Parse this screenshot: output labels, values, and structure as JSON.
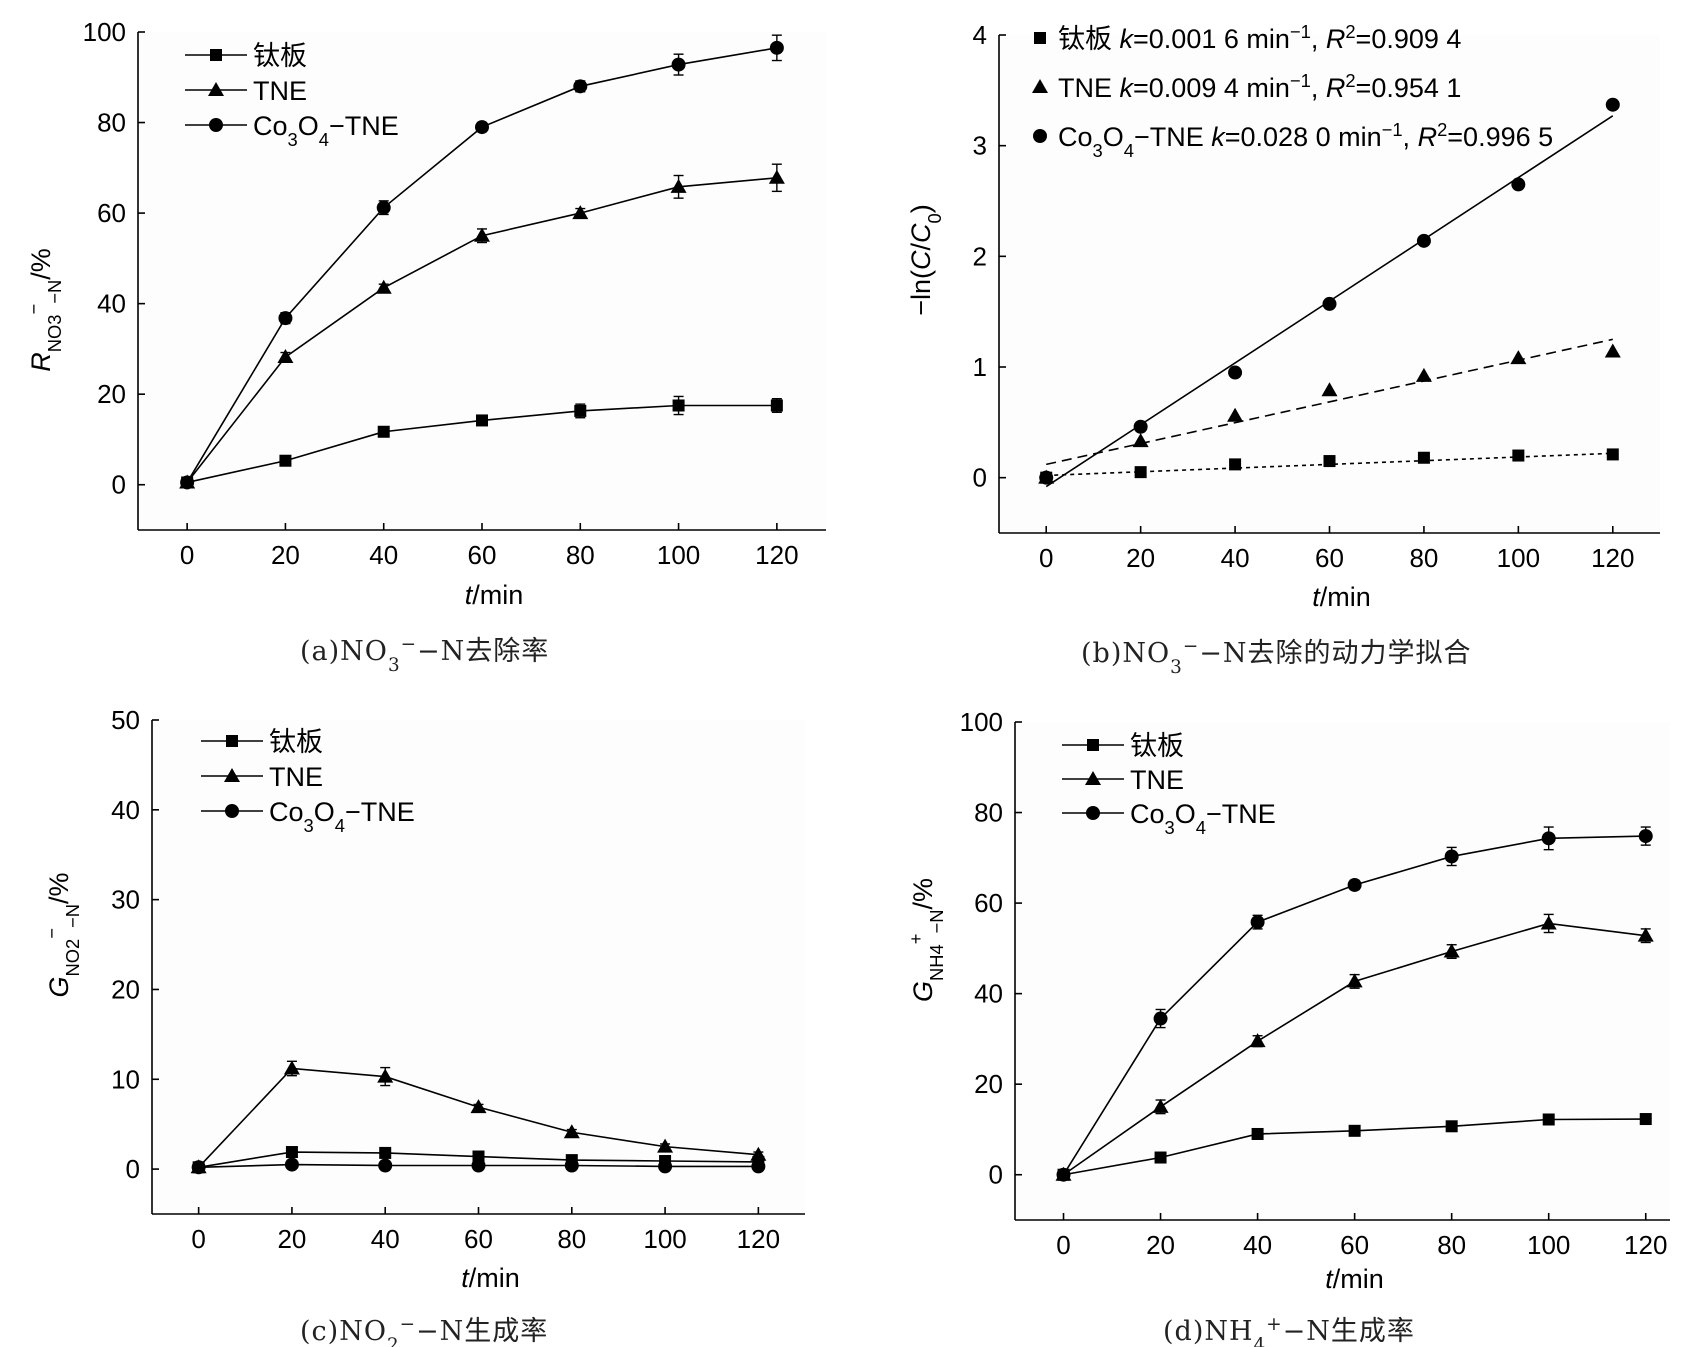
{
  "figure": {
    "captions": {
      "a": [
        "(a)NO",
        "3",
        "−",
        "−N去除率"
      ],
      "b": [
        "(b)NO",
        "3",
        "−",
        "−N去除的动力学拟合"
      ],
      "c": [
        "(c)NO",
        "2",
        "−",
        "−N生成率"
      ],
      "d": [
        "(d)NH",
        "4",
        "+",
        "−N生成率"
      ]
    }
  },
  "chart_data": [
    {
      "id": "a",
      "type": "line",
      "title": "",
      "xlabel": "t/min",
      "ylabel": [
        "R",
        "NO",
        "3",
        "−",
        "−N",
        "/%"
      ],
      "x": [
        0,
        20,
        40,
        60,
        80,
        100,
        120
      ],
      "xlim": [
        -10,
        130
      ],
      "ylim": [
        -10,
        100
      ],
      "xticks": [
        "0",
        "20",
        "40",
        "60",
        "80",
        "100",
        "120"
      ],
      "yticks": [
        "0",
        "20",
        "40",
        "60",
        "80",
        "100"
      ],
      "legend_position": "top-left",
      "series": [
        {
          "name": "钛板",
          "marker": "square",
          "values": [
            0.5,
            5.3,
            11.7,
            14.2,
            16.3,
            17.5,
            17.5
          ],
          "errors": [
            0.5,
            0.8,
            0.8,
            1.0,
            1.5,
            2.0,
            1.5
          ]
        },
        {
          "name": "TNE",
          "marker": "triangle",
          "values": [
            0.5,
            28.2,
            43.5,
            55.0,
            60.0,
            65.8,
            67.8
          ],
          "errors": [
            0.5,
            1.0,
            0.8,
            1.5,
            1.0,
            2.5,
            3.0
          ]
        },
        {
          "name": "Co₃O₄−TNE",
          "name_parts": [
            "Co",
            "3",
            "O",
            "4",
            "−TNE"
          ],
          "marker": "circle",
          "values": [
            0.5,
            36.8,
            61.2,
            79.0,
            88.0,
            92.8,
            96.5
          ],
          "errors": [
            0.5,
            1.2,
            1.5,
            1.0,
            1.2,
            2.3,
            2.8
          ]
        }
      ]
    },
    {
      "id": "b",
      "type": "scatter",
      "title": "",
      "xlabel": "t/min",
      "ylabel": [
        "−ln(C/C",
        "0",
        ")"
      ],
      "x": [
        0,
        20,
        40,
        60,
        80,
        100,
        120
      ],
      "xlim": [
        -10,
        130
      ],
      "ylim": [
        -0.5,
        4
      ],
      "xticks": [
        "0",
        "20",
        "40",
        "60",
        "80",
        "100",
        "120"
      ],
      "yticks": [
        "0",
        "1",
        "2",
        "3",
        "4"
      ],
      "legend_position": "top-left",
      "series": [
        {
          "name": "钛板",
          "marker": "square",
          "fit_style": "dotted",
          "values": [
            0.0,
            0.05,
            0.12,
            0.15,
            0.18,
            0.2,
            0.21
          ],
          "fit": [
            0.02,
            0.22
          ],
          "legend": [
            "钛板  ",
            "k",
            "=0.001 6  min",
            "−1",
            ", ",
            "R",
            "2",
            "=0.909 4"
          ]
        },
        {
          "name": "TNE",
          "marker": "triangle",
          "fit_style": "dashed",
          "values": [
            0.0,
            0.33,
            0.56,
            0.79,
            0.92,
            1.08,
            1.14
          ],
          "fit": [
            0.12,
            1.25
          ],
          "legend": [
            "TNE   ",
            "k",
            "=0.009 4  min",
            "−1",
            ", ",
            "R",
            "2",
            "=0.954 1"
          ]
        },
        {
          "name": "Co₃O₄−TNE",
          "marker": "circle",
          "fit_style": "solid",
          "values": [
            0.0,
            0.46,
            0.95,
            1.57,
            2.14,
            2.65,
            3.37
          ],
          "fit": [
            -0.08,
            3.27
          ],
          "legend": [
            "Co",
            "3",
            "O",
            "4",
            "−TNE  ",
            "k",
            "=0.028 0  min",
            "−1",
            ", ",
            "R",
            "2",
            "=0.996 5"
          ]
        }
      ]
    },
    {
      "id": "c",
      "type": "line",
      "title": "",
      "xlabel": "t/min",
      "ylabel": [
        "G",
        "NO",
        "2",
        "−",
        "−N",
        "/%"
      ],
      "x": [
        0,
        20,
        40,
        60,
        80,
        100,
        120
      ],
      "xlim": [
        -10,
        130
      ],
      "ylim": [
        -5,
        50
      ],
      "xticks": [
        "0",
        "20",
        "40",
        "60",
        "80",
        "100",
        "120"
      ],
      "yticks": [
        "0",
        "10",
        "20",
        "30",
        "40",
        "50"
      ],
      "legend_position": "top-left",
      "series": [
        {
          "name": "钛板",
          "marker": "square",
          "values": [
            0.2,
            1.9,
            1.8,
            1.4,
            1.0,
            0.9,
            0.8
          ],
          "errors": [
            0.2,
            0.2,
            0.2,
            0.2,
            0.2,
            0.2,
            0.2
          ]
        },
        {
          "name": "TNE",
          "marker": "triangle",
          "values": [
            0.2,
            11.2,
            10.3,
            6.9,
            4.1,
            2.5,
            1.6
          ],
          "errors": [
            0.2,
            0.8,
            1.0,
            0.3,
            0.3,
            0.3,
            0.3
          ]
        },
        {
          "name": "Co₃O₄−TNE",
          "name_parts": [
            "Co",
            "3",
            "O",
            "4",
            "−TNE"
          ],
          "marker": "circle",
          "values": [
            0.2,
            0.5,
            0.4,
            0.4,
            0.4,
            0.3,
            0.3
          ],
          "errors": [
            0.1,
            0.1,
            0.1,
            0.1,
            0.1,
            0.1,
            0.1
          ]
        }
      ]
    },
    {
      "id": "d",
      "type": "line",
      "title": "",
      "xlabel": "t/min",
      "ylabel": [
        "G",
        "NH",
        "4",
        "+",
        "−N",
        "/%"
      ],
      "x": [
        0,
        20,
        40,
        60,
        80,
        100,
        120
      ],
      "xlim": [
        -10,
        125
      ],
      "ylim": [
        -10,
        100
      ],
      "xticks": [
        "0",
        "20",
        "40",
        "60",
        "80",
        "100",
        "120"
      ],
      "yticks": [
        "0",
        "20",
        "40",
        "60",
        "80",
        "100"
      ],
      "legend_position": "top-left",
      "series": [
        {
          "name": "钛板",
          "marker": "square",
          "values": [
            0.0,
            3.8,
            9.0,
            9.7,
            10.7,
            12.2,
            12.3
          ],
          "errors": [
            0.3,
            0.5,
            0.5,
            0.5,
            0.8,
            0.8,
            0.8
          ]
        },
        {
          "name": "TNE",
          "marker": "triangle",
          "values": [
            0.0,
            15.0,
            29.5,
            42.7,
            49.3,
            55.5,
            52.8
          ],
          "errors": [
            0.3,
            1.5,
            1.2,
            1.5,
            1.5,
            2.0,
            1.5
          ]
        },
        {
          "name": "Co₃O₄−TNE",
          "name_parts": [
            "Co",
            "3",
            "O",
            "4",
            "−TNE"
          ],
          "marker": "circle",
          "values": [
            0.0,
            34.5,
            55.8,
            64.0,
            70.3,
            74.3,
            74.8
          ],
          "errors": [
            0.3,
            2.0,
            1.5,
            1.0,
            2.0,
            2.5,
            2.0
          ]
        }
      ]
    }
  ]
}
